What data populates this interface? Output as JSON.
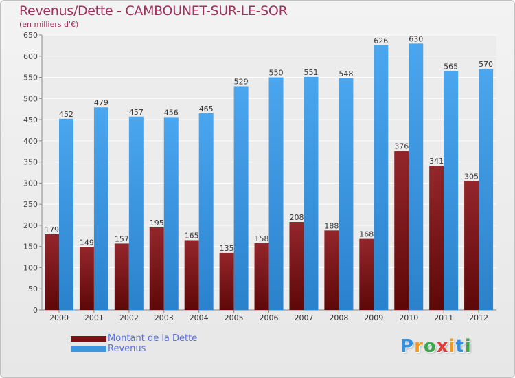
{
  "header": {
    "title": "Revenus/Dette - CAMBOUNET-SUR-LE-SOR",
    "subtitle": "(en milliers d'€)"
  },
  "legend": {
    "items": [
      {
        "label": "Montant de la Dette",
        "color": "#7a1414"
      },
      {
        "label": "Revenus",
        "color": "#3d97e0"
      }
    ]
  },
  "logo": {
    "letters": [
      "P",
      "r",
      "o",
      "x",
      "i",
      "t",
      "i"
    ],
    "colors": [
      "#2f8fe0",
      "#f39a1e",
      "#3aa84a",
      "#e53935",
      "#f39a1e",
      "#2f8fe0",
      "#3aa84a"
    ]
  },
  "chart_data": {
    "type": "bar",
    "categories": [
      "2000",
      "2001",
      "2002",
      "2003",
      "2004",
      "2005",
      "2006",
      "2007",
      "2008",
      "2009",
      "2010",
      "2011",
      "2012"
    ],
    "series": [
      {
        "name": "Montant de la Dette",
        "color": "#7a1414",
        "values": [
          179,
          149,
          157,
          195,
          165,
          135,
          158,
          208,
          188,
          168,
          376,
          341,
          305
        ]
      },
      {
        "name": "Revenus",
        "color": "#3d97e0",
        "values": [
          452,
          479,
          457,
          456,
          465,
          529,
          550,
          551,
          548,
          626,
          630,
          565,
          570
        ]
      }
    ],
    "yticks": [
      0,
      50,
      100,
      150,
      200,
      250,
      300,
      350,
      400,
      450,
      500,
      550,
      600,
      650
    ],
    "ylim": [
      0,
      650
    ],
    "grid": true,
    "legend_position": "bottom-left"
  }
}
